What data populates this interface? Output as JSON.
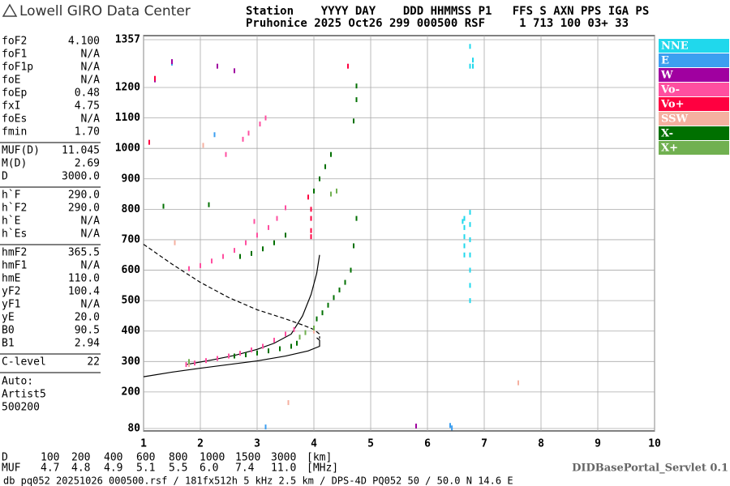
{
  "header": {
    "logo": "Lowell GIRO Data Center",
    "station_lines": [
      "Station    YYYY DAY    DDD HHMMSS P1   FFS S AXN PPS IGA PS",
      "Pruhonice 2025 Oct26 299 000500 RSF     1 713 100 03+ 33"
    ]
  },
  "params": [
    [
      [
        "foF2",
        "4.100"
      ],
      [
        "foF1",
        "N/A"
      ],
      [
        "foF1p",
        "N/A"
      ],
      [
        "foE",
        "N/A"
      ],
      [
        "foEp",
        "0.48"
      ],
      [
        "fxI",
        "4.75"
      ],
      [
        "foEs",
        "N/A"
      ],
      [
        "fmin",
        "1.70"
      ]
    ],
    [
      [
        "MUF(D)",
        "11.045"
      ],
      [
        "M(D)",
        "2.69"
      ],
      [
        "D",
        "3000.0"
      ]
    ],
    [
      [
        "h`F",
        "290.0"
      ],
      [
        "h`F2",
        "290.0"
      ],
      [
        "h`E",
        "N/A"
      ],
      [
        "h`Es",
        "N/A"
      ]
    ],
    [
      [
        "hmF2",
        "365.5"
      ],
      [
        "hmF1",
        "N/A"
      ],
      [
        "hmE",
        "110.0"
      ],
      [
        "yF2",
        "100.4"
      ],
      [
        "yF1",
        "N/A"
      ],
      [
        "yE",
        "20.0"
      ],
      [
        "B0",
        "90.5"
      ],
      [
        "B1",
        "2.94"
      ]
    ],
    [
      [
        "C-level",
        "22"
      ]
    ]
  ],
  "auto": [
    "Auto:",
    "Artist5",
    "500200"
  ],
  "muf_table": {
    "rows": [
      [
        "D",
        "100",
        "200",
        "400",
        "600",
        "800",
        "1000",
        "1500",
        "3000",
        "[km]"
      ],
      [
        "MUF",
        "4.7",
        "4.8",
        "4.9",
        "5.1",
        "5.5",
        "6.0",
        "7.4",
        "11.0",
        "[MHz]"
      ]
    ]
  },
  "footer": {
    "servlet": "DIDBasePortal_Servlet 0.1",
    "info": "db pq052 20251026 000500.rsf / 181fx512h 5 kHz 2.5 km / DPS-4D PQ052 50 / 50.0 N 14.6 E"
  },
  "chart_data": {
    "type": "ionogram",
    "grid": true,
    "xlim": [
      1,
      10
    ],
    "xticks": [
      1,
      2,
      3,
      4,
      5,
      6,
      7,
      8,
      9,
      10
    ],
    "ylim": [
      80,
      1357
    ],
    "yticks": [
      80,
      200,
      300,
      400,
      500,
      600,
      700,
      800,
      900,
      1000,
      1100,
      1200,
      1357
    ],
    "series": [
      {
        "name": "NNE",
        "color": "#20d8ec",
        "x": [
          6.65,
          6.65,
          6.65,
          6.65,
          6.65,
          6.75,
          6.75,
          6.75,
          6.75,
          6.75,
          6.75,
          6.75,
          6.75,
          6.8,
          6.8,
          6.75,
          6.62
        ],
        "values": [
          650,
          680,
          710,
          740,
          770,
          500,
          550,
          600,
          650,
          700,
          750,
          790,
          1270,
          1270,
          1290,
          1335,
          760
        ]
      },
      {
        "name": "E",
        "color": "#3c9ff0",
        "x": [
          6.43,
          2.25,
          1.5,
          3.15,
          6.4
        ],
        "values": [
          82,
          1045,
          1280,
          85,
          90
        ]
      },
      {
        "name": "W",
        "color": "#a000a0",
        "x": [
          5.8,
          2.3,
          2.6,
          1.5,
          1.2
        ],
        "values": [
          88,
          1270,
          1255,
          1285,
          1225
        ]
      },
      {
        "name": "Vo-",
        "color": "#ff4fa0",
        "x": [
          1.75,
          1.9,
          2.1,
          2.3,
          2.5,
          2.7,
          2.9,
          3.1,
          3.3,
          3.5,
          3.65,
          1.8,
          2.0,
          2.2,
          2.4,
          2.6,
          2.8,
          3.0,
          3.2,
          3.35,
          3.5,
          2.75,
          2.85,
          3.05,
          3.15,
          2.95,
          2.45
        ],
        "values": [
          290,
          295,
          303,
          310,
          318,
          327,
          338,
          350,
          370,
          390,
          405,
          605,
          615,
          630,
          645,
          665,
          690,
          715,
          740,
          770,
          805,
          1030,
          1050,
          1080,
          1100,
          760,
          980
        ]
      },
      {
        "name": "Vo+",
        "color": "#ff0040",
        "x": [
          3.95,
          3.95,
          3.95,
          3.95,
          3.9,
          4.6,
          1.1,
          1.2
        ],
        "values": [
          710,
          730,
          770,
          800,
          840,
          1270,
          1020,
          1230
        ]
      },
      {
        "name": "SSW",
        "color": "#f5b0a0",
        "x": [
          3.55,
          1.55,
          4.0,
          7.6,
          1.8,
          2.05
        ],
        "values": [
          165,
          690,
          400,
          230,
          290,
          1010
        ]
      },
      {
        "name": "X-",
        "color": "#007000",
        "x": [
          2.6,
          2.8,
          3.0,
          3.2,
          3.4,
          3.6,
          3.7,
          4.05,
          4.15,
          4.25,
          4.35,
          4.45,
          4.55,
          4.65,
          4.7,
          4.75,
          4.0,
          4.1,
          4.2,
          4.3,
          4.7,
          4.75,
          4.75,
          2.7,
          2.9,
          3.1,
          3.3,
          3.5,
          1.35,
          2.15
        ],
        "values": [
          318,
          322,
          328,
          335,
          342,
          350,
          360,
          440,
          460,
          485,
          510,
          535,
          560,
          600,
          680,
          770,
          860,
          900,
          940,
          980,
          1090,
          1160,
          1205,
          645,
          655,
          670,
          690,
          715,
          810,
          815
        ]
      },
      {
        "name": "X+",
        "color": "#70b050",
        "x": [
          3.75,
          3.85,
          4.0,
          4.3,
          4.4,
          1.8
        ],
        "values": [
          380,
          395,
          410,
          850,
          860,
          300
        ]
      }
    ],
    "curves": [
      {
        "dashed": false,
        "x": [
          1,
          1.5,
          2,
          2.5,
          3,
          3.5,
          3.9,
          4.1,
          4.1,
          4.05
        ],
        "values": [
          250,
          265,
          278,
          290,
          302,
          318,
          335,
          350,
          370,
          378
        ]
      },
      {
        "dashed": false,
        "x": [
          1.75,
          2.2,
          2.6,
          3.0,
          3.3,
          3.6,
          3.8,
          3.95,
          4.05,
          4.1
        ],
        "values": [
          290,
          305,
          320,
          340,
          360,
          390,
          450,
          520,
          590,
          650
        ]
      },
      {
        "dashed": true,
        "x": [
          1,
          1.5,
          2,
          2.5,
          3,
          3.5,
          3.8,
          4.0,
          4.1,
          4.1
        ],
        "values": [
          685,
          620,
          560,
          510,
          470,
          440,
          420,
          405,
          390,
          375
        ]
      }
    ]
  }
}
